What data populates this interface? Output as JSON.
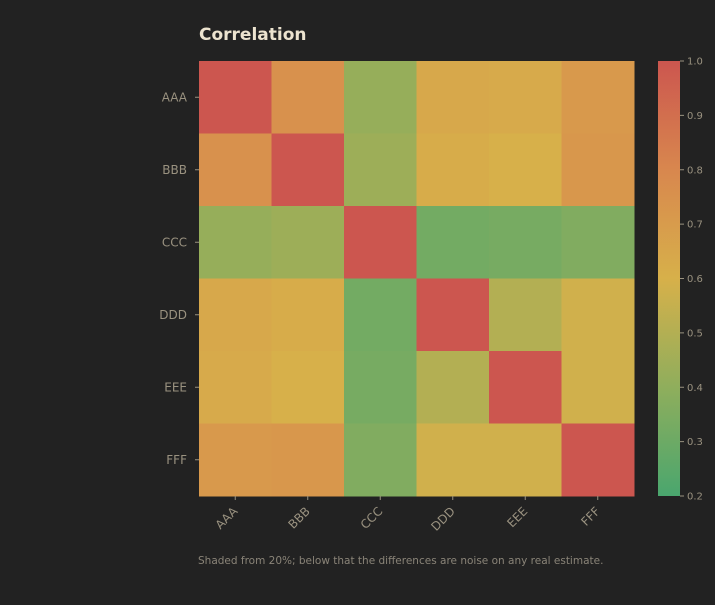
{
  "chart_data": {
    "type": "heatmap",
    "title": "Correlation",
    "row_labels": [
      "AAA",
      "BBB",
      "CCC",
      "DDD",
      "EEE",
      "FFF"
    ],
    "col_labels": [
      "AAA",
      "BBB",
      "CCC",
      "DDD",
      "EEE",
      "FFF"
    ],
    "values": [
      [
        1.0,
        0.75,
        0.42,
        0.64,
        0.63,
        0.71
      ],
      [
        0.75,
        1.0,
        0.44,
        0.62,
        0.6,
        0.72
      ],
      [
        0.42,
        0.44,
        1.0,
        0.32,
        0.33,
        0.36
      ],
      [
        0.64,
        0.62,
        0.32,
        1.0,
        0.5,
        0.58
      ],
      [
        0.63,
        0.6,
        0.33,
        0.5,
        1.0,
        0.58
      ],
      [
        0.71,
        0.72,
        0.36,
        0.58,
        0.58,
        1.0
      ]
    ],
    "colorbar": {
      "min": 0.2,
      "max": 1.0,
      "ticks": [
        "0.2",
        "0.3",
        "0.4",
        "0.5",
        "0.6",
        "0.7",
        "0.8",
        "0.9",
        "1.0"
      ]
    },
    "colormap": [
      "#4aa66e",
      "#8fae5c",
      "#d7b04a",
      "#d8874e",
      "#cc564f"
    ],
    "footnote": "Shaded from 20%; below that the differences are noise on any real estimate."
  },
  "colors": {
    "background": "#222222",
    "title": "#ece3cf",
    "tick_text": "#9a9280"
  }
}
